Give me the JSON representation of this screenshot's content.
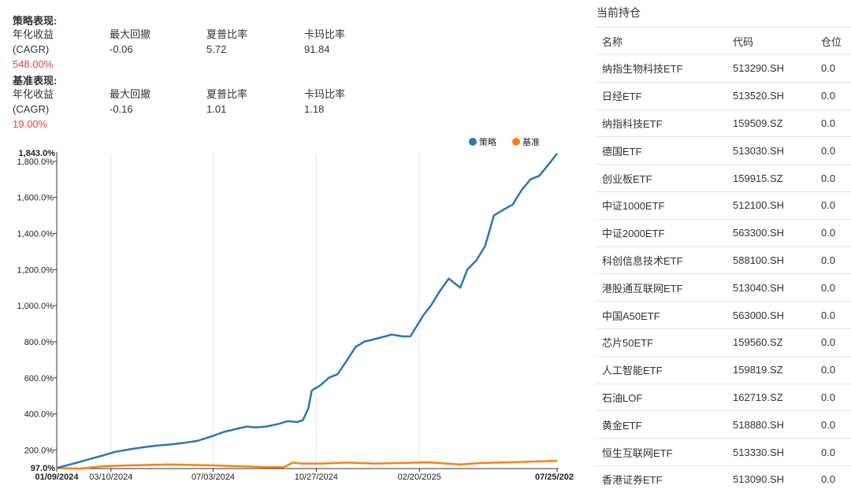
{
  "strategy": {
    "title": "策略表现:",
    "metrics": [
      {
        "label": "年化收益",
        "label2": "(CAGR)",
        "value": "548.00%"
      },
      {
        "label": "最大回撤",
        "value": "-0.06"
      },
      {
        "label": "夏普比率",
        "value": "5.72"
      },
      {
        "label": "卡玛比率",
        "value": "91.84"
      }
    ]
  },
  "benchmark": {
    "title": "基准表现:",
    "metrics": [
      {
        "label": "年化收益",
        "label2": "(CAGR)",
        "value": "19.00%"
      },
      {
        "label": "最大回撤",
        "value": "-0.16"
      },
      {
        "label": "夏普比率",
        "value": "1.01"
      },
      {
        "label": "卡玛比率",
        "value": "1.18"
      }
    ]
  },
  "chart_data": {
    "type": "line",
    "title": "",
    "xlabel": "",
    "ylabel": "",
    "ylim": [
      97,
      1843
    ],
    "yticks": [
      200,
      400,
      600,
      800,
      1000,
      1200,
      1400,
      1600,
      1800
    ],
    "ytick_labels": [
      "200.0%",
      "400.0%",
      "600.0%",
      "800.0%",
      "1,000.0%",
      "1,200.0%",
      "1,400.0%",
      "1,600.0%",
      "1,800.0%"
    ],
    "ymin_label": "97.0%",
    "ymax_label": "1,843.0%",
    "x_start": "2024-01-09",
    "x_end": "2025-07-25",
    "xticks": [
      {
        "date": "2024-01-09",
        "label": "01/09/2024",
        "bold": true
      },
      {
        "date": "2024-03-10",
        "label": "03/10/2024",
        "bold": false
      },
      {
        "date": "2024-07-03",
        "label": "07/03/2024",
        "bold": false
      },
      {
        "date": "2024-10-27",
        "label": "10/27/2024",
        "bold": false
      },
      {
        "date": "2025-02-20",
        "label": "02/20/2025",
        "bold": false
      },
      {
        "date": "2025-07-25",
        "label": "07/25/202",
        "bold": true
      }
    ],
    "legend_position": "top-right",
    "grid": true,
    "series": [
      {
        "name": "策略",
        "color": "#2a77b4",
        "points": [
          [
            "2024-01-09",
            100
          ],
          [
            "2024-01-20",
            115
          ],
          [
            "2024-02-01",
            130
          ],
          [
            "2024-02-15",
            150
          ],
          [
            "2024-03-01",
            170
          ],
          [
            "2024-03-15",
            190
          ],
          [
            "2024-04-01",
            205
          ],
          [
            "2024-04-15",
            215
          ],
          [
            "2024-05-01",
            225
          ],
          [
            "2024-05-15",
            230
          ],
          [
            "2024-06-01",
            240
          ],
          [
            "2024-06-15",
            250
          ],
          [
            "2024-07-01",
            275
          ],
          [
            "2024-07-15",
            300
          ],
          [
            "2024-08-01",
            320
          ],
          [
            "2024-08-10",
            330
          ],
          [
            "2024-08-20",
            325
          ],
          [
            "2024-09-01",
            330
          ],
          [
            "2024-09-15",
            345
          ],
          [
            "2024-09-25",
            360
          ],
          [
            "2024-10-05",
            355
          ],
          [
            "2024-10-12",
            365
          ],
          [
            "2024-10-18",
            430
          ],
          [
            "2024-10-22",
            530
          ],
          [
            "2024-11-01",
            560
          ],
          [
            "2024-11-10",
            600
          ],
          [
            "2024-11-20",
            620
          ],
          [
            "2024-12-01",
            700
          ],
          [
            "2024-12-10",
            770
          ],
          [
            "2024-12-20",
            800
          ],
          [
            "2025-01-05",
            820
          ],
          [
            "2025-01-20",
            840
          ],
          [
            "2025-02-01",
            830
          ],
          [
            "2025-02-10",
            830
          ],
          [
            "2025-02-15",
            870
          ],
          [
            "2025-02-25",
            950
          ],
          [
            "2025-03-05",
            1000
          ],
          [
            "2025-03-15",
            1080
          ],
          [
            "2025-03-25",
            1150
          ],
          [
            "2025-04-07",
            1100
          ],
          [
            "2025-04-15",
            1200
          ],
          [
            "2025-04-25",
            1250
          ],
          [
            "2025-05-05",
            1330
          ],
          [
            "2025-05-15",
            1500
          ],
          [
            "2025-05-25",
            1530
          ],
          [
            "2025-06-05",
            1560
          ],
          [
            "2025-06-15",
            1640
          ],
          [
            "2025-06-25",
            1700
          ],
          [
            "2025-07-05",
            1720
          ],
          [
            "2025-07-15",
            1780
          ],
          [
            "2025-07-25",
            1843
          ]
        ]
      },
      {
        "name": "基准",
        "color": "#ff7f0e",
        "points": [
          [
            "2024-01-09",
            100
          ],
          [
            "2024-01-25",
            98
          ],
          [
            "2024-02-05",
            97
          ],
          [
            "2024-03-01",
            110
          ],
          [
            "2024-04-01",
            115
          ],
          [
            "2024-05-15",
            120
          ],
          [
            "2024-07-01",
            115
          ],
          [
            "2024-08-01",
            110
          ],
          [
            "2024-09-01",
            105
          ],
          [
            "2024-09-20",
            105
          ],
          [
            "2024-10-01",
            130
          ],
          [
            "2024-10-10",
            125
          ],
          [
            "2024-11-01",
            125
          ],
          [
            "2024-12-01",
            130
          ],
          [
            "2025-01-01",
            125
          ],
          [
            "2025-02-01",
            128
          ],
          [
            "2025-03-01",
            132
          ],
          [
            "2025-04-07",
            120
          ],
          [
            "2025-05-01",
            128
          ],
          [
            "2025-06-01",
            132
          ],
          [
            "2025-07-25",
            140
          ]
        ]
      }
    ]
  },
  "holdings": {
    "title": "当前持仓",
    "headers": [
      "名称",
      "代码",
      "仓位"
    ],
    "rows": [
      [
        "纳指生物科技ETF",
        "513290.SH",
        "0.0"
      ],
      [
        "日经ETF",
        "513520.SH",
        "0.0"
      ],
      [
        "纳指科技ETF",
        "159509.SZ",
        "0.0"
      ],
      [
        "德国ETF",
        "513030.SH",
        "0.0"
      ],
      [
        "创业板ETF",
        "159915.SZ",
        "0.0"
      ],
      [
        "中证1000ETF",
        "512100.SH",
        "0.0"
      ],
      [
        "中证2000ETF",
        "563300.SH",
        "0.0"
      ],
      [
        "科创信息技术ETF",
        "588100.SH",
        "0.0"
      ],
      [
        "港股通互联网ETF",
        "513040.SH",
        "0.0"
      ],
      [
        "中国A50ETF",
        "563000.SH",
        "0.0"
      ],
      [
        "芯片50ETF",
        "159560.SZ",
        "0.0"
      ],
      [
        "人工智能ETF",
        "159819.SZ",
        "0.0"
      ],
      [
        "石油LOF",
        "162719.SZ",
        "0.0"
      ],
      [
        "黄金ETF",
        "518880.SH",
        "0.0"
      ],
      [
        "恒生互联网ETF",
        "513330.SH",
        "0.0"
      ],
      [
        "香港证券ETF",
        "513090.SH",
        "0.0"
      ]
    ]
  }
}
